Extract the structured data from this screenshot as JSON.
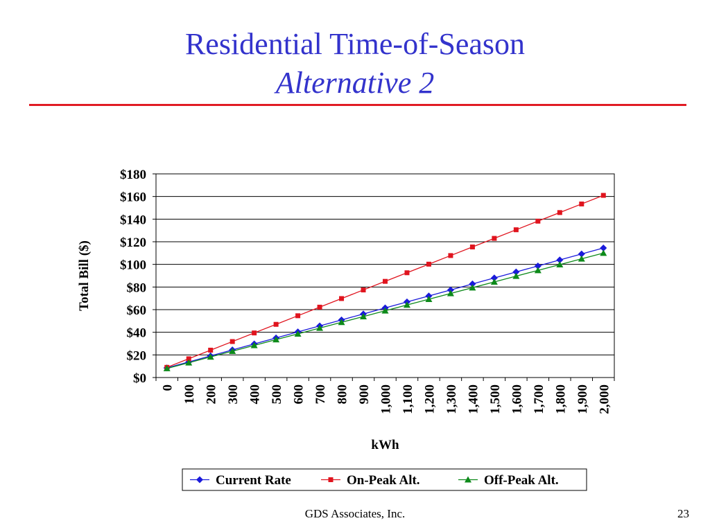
{
  "slide": {
    "title_line1": "Residential Time-of-Season",
    "title_line2": "Alternative 2",
    "footer_org": "GDS Associates, Inc.",
    "page_number": "23"
  },
  "chart_data": {
    "type": "line",
    "xlabel": "kWh",
    "ylabel": "Total Bill ($)",
    "categories": [
      "0",
      "100",
      "200",
      "300",
      "400",
      "500",
      "600",
      "700",
      "800",
      "900",
      "1,000",
      "1,100",
      "1,200",
      "1,300",
      "1,400",
      "1,500",
      "1,600",
      "1,700",
      "1,800",
      "1,900",
      "2,000"
    ],
    "ylim": [
      0,
      180
    ],
    "yticks": [
      0,
      20,
      40,
      60,
      80,
      100,
      120,
      140,
      160,
      180
    ],
    "ytick_labels": [
      "$0",
      "$20",
      "$40",
      "$60",
      "$80",
      "$100",
      "$120",
      "$140",
      "$160",
      "$180"
    ],
    "grid": "horizontal",
    "legend_position": "bottom",
    "series": [
      {
        "name": "Current Rate",
        "color": "#1a1adb",
        "marker": "diamond",
        "values": [
          8.5,
          13.8,
          19.1,
          24.4,
          29.7,
          35.0,
          40.3,
          45.6,
          50.9,
          56.2,
          61.5,
          66.8,
          72.1,
          77.4,
          82.7,
          88.0,
          93.3,
          98.6,
          103.9,
          109.2,
          114.5
        ]
      },
      {
        "name": "On-Peak Alt.",
        "color": "#e0141e",
        "marker": "square",
        "values": [
          9.0,
          16.6,
          24.2,
          31.8,
          39.4,
          47.0,
          54.6,
          62.2,
          69.8,
          77.4,
          85.0,
          92.6,
          100.2,
          107.8,
          115.4,
          123.0,
          130.6,
          138.2,
          145.8,
          153.4,
          161.0
        ]
      },
      {
        "name": "Off-Peak Alt.",
        "color": "#0d8a1a",
        "marker": "triangle",
        "values": [
          8.0,
          13.1,
          18.2,
          23.3,
          28.4,
          33.5,
          38.6,
          43.7,
          48.8,
          53.9,
          59.0,
          64.1,
          69.2,
          74.3,
          79.4,
          84.5,
          89.6,
          94.7,
          99.8,
          104.9,
          110.0
        ]
      }
    ]
  }
}
